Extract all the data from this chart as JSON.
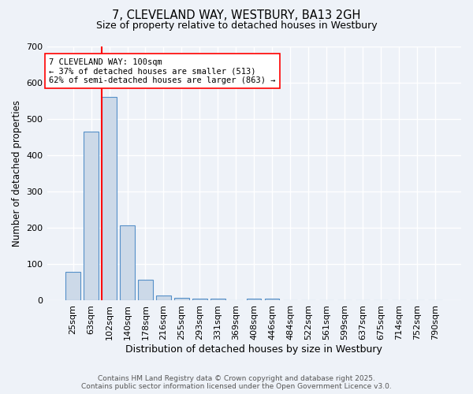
{
  "title1": "7, CLEVELAND WAY, WESTBURY, BA13 2GH",
  "title2": "Size of property relative to detached houses in Westbury",
  "xlabel": "Distribution of detached houses by size in Westbury",
  "ylabel": "Number of detached properties",
  "categories": [
    "25sqm",
    "63sqm",
    "102sqm",
    "140sqm",
    "178sqm",
    "216sqm",
    "255sqm",
    "293sqm",
    "331sqm",
    "369sqm",
    "408sqm",
    "446sqm",
    "484sqm",
    "522sqm",
    "561sqm",
    "599sqm",
    "637sqm",
    "675sqm",
    "714sqm",
    "752sqm",
    "790sqm"
  ],
  "values": [
    80,
    465,
    560,
    207,
    57,
    15,
    8,
    5,
    5,
    0,
    5,
    5,
    0,
    0,
    0,
    0,
    0,
    0,
    0,
    0,
    0
  ],
  "bar_color": "#ccd9e8",
  "bar_edge_color": "#5590c8",
  "red_line_index": 2,
  "annotation_line1": "7 CLEVELAND WAY: 100sqm",
  "annotation_line2": "← 37% of detached houses are smaller (513)",
  "annotation_line3": "62% of semi-detached houses are larger (863) →",
  "annotation_box_color": "white",
  "annotation_edge_color": "red",
  "ylim": [
    0,
    700
  ],
  "yticks": [
    0,
    100,
    200,
    300,
    400,
    500,
    600,
    700
  ],
  "background_color": "#eef2f8",
  "grid_color": "white",
  "footer1": "Contains HM Land Registry data © Crown copyright and database right 2025.",
  "footer2": "Contains public sector information licensed under the Open Government Licence v3.0."
}
